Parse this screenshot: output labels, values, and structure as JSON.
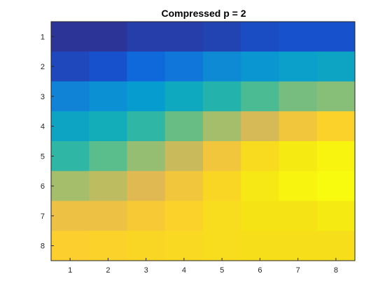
{
  "chart_data": {
    "type": "heatmap",
    "title": "Compressed p = 2",
    "xlabel": "",
    "ylabel": "",
    "x_categories": [
      "1",
      "2",
      "3",
      "4",
      "5",
      "6",
      "7",
      "8"
    ],
    "y_categories": [
      "1",
      "2",
      "3",
      "4",
      "5",
      "6",
      "7",
      "8"
    ],
    "y_direction": "top-to-bottom",
    "colormap": "parula",
    "grid": false,
    "legend": "none",
    "values": [
      [
        0.02,
        0.02,
        0.04,
        0.04,
        0.05,
        0.07,
        0.08,
        0.08
      ],
      [
        0.06,
        0.08,
        0.14,
        0.18,
        0.24,
        0.28,
        0.32,
        0.34
      ],
      [
        0.22,
        0.26,
        0.3,
        0.36,
        0.42,
        0.48,
        0.54,
        0.56
      ],
      [
        0.34,
        0.38,
        0.44,
        0.52,
        0.6,
        0.68,
        0.76,
        0.82
      ],
      [
        0.44,
        0.5,
        0.58,
        0.66,
        0.76,
        0.86,
        0.93,
        0.97
      ],
      [
        0.6,
        0.64,
        0.7,
        0.76,
        0.84,
        0.92,
        0.97,
        1.0
      ],
      [
        0.74,
        0.74,
        0.78,
        0.82,
        0.87,
        0.9,
        0.9,
        0.93
      ],
      [
        0.8,
        0.82,
        0.84,
        0.85,
        0.87,
        0.88,
        0.88,
        0.88
      ]
    ]
  }
}
